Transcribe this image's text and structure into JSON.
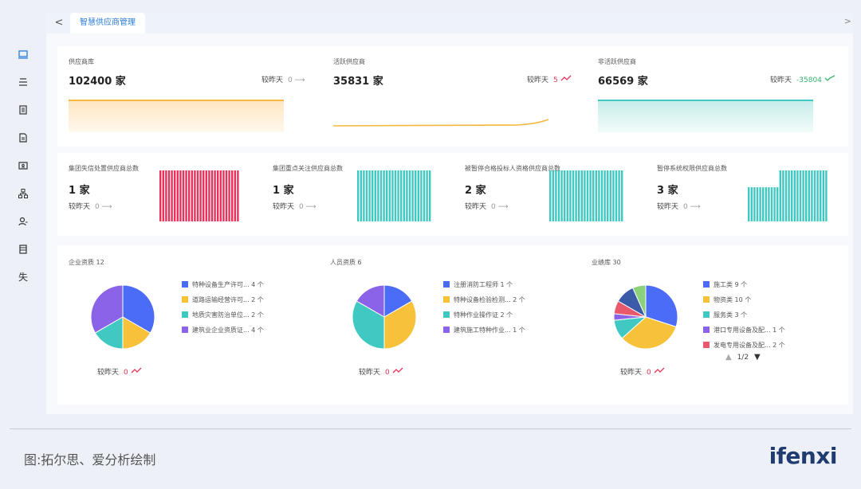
{
  "tabs": {
    "active": "智慧供应商管理",
    "back": "<",
    "forward": ">"
  },
  "sidebar": {
    "items": [
      "laptop-icon",
      "list-icon",
      "document-icon",
      "file-icon",
      "id-card-icon",
      "org-tree-icon",
      "user-icon",
      "report-icon"
    ],
    "last_text": "失"
  },
  "stats_top": [
    {
      "label": "供应商库",
      "value": "102400 家",
      "cmp_label": "较昨天",
      "cmp_value": "0",
      "trend": "flat"
    },
    {
      "label": "活跃供应商",
      "value": "35831 家",
      "cmp_label": "较昨天",
      "cmp_value": "5",
      "trend": "up"
    },
    {
      "label": "非活跃供应商",
      "value": "66569 家",
      "cmp_label": "较昨天",
      "cmp_value": "-35804",
      "trend": "down-check"
    }
  ],
  "stats_mid": [
    {
      "label": "集团失信处置供应商总数",
      "value": "1 家",
      "cmp_label": "较昨天",
      "cmp_value": "0",
      "color": "#e8315b"
    },
    {
      "label": "集团重点关注供应商总数",
      "value": "1 家",
      "cmp_label": "较昨天",
      "cmp_value": "0",
      "color": "#3fc9c2"
    },
    {
      "label": "被暂停合格投标人资格供应商总数",
      "value": "2 家",
      "cmp_label": "较昨天",
      "cmp_value": "0",
      "color": "#3fc9c2"
    },
    {
      "label": "暂停系统权限供应商总数",
      "value": "3 家",
      "cmp_label": "较昨天",
      "cmp_value": "0",
      "color": "#3fc9c2"
    }
  ],
  "pies": [
    {
      "title": "企业资质 12",
      "cmp_label": "较昨天",
      "cmp_value": "0",
      "legend": [
        {
          "label": "特种设备生产许可... 4 个",
          "value": 4,
          "color": "#4a6cf7"
        },
        {
          "label": "道路运输经营许可... 2 个",
          "value": 2,
          "color": "#f8c13a"
        },
        {
          "label": "地质灾害防治单位... 2 个",
          "value": 2,
          "color": "#3fc9c2"
        },
        {
          "label": "建筑业企业资质证... 4 个",
          "value": 4,
          "color": "#8a63e8"
        }
      ]
    },
    {
      "title": "人员资质 6",
      "cmp_label": "较昨天",
      "cmp_value": "0",
      "legend": [
        {
          "label": "注册消防工程师 1 个",
          "value": 1,
          "color": "#4a6cf7"
        },
        {
          "label": "特种设备检验检测... 2 个",
          "value": 2,
          "color": "#f8c13a"
        },
        {
          "label": "特种作业操作证 2 个",
          "value": 2,
          "color": "#3fc9c2"
        },
        {
          "label": "建筑施工特种作业... 1 个",
          "value": 1,
          "color": "#8a63e8"
        }
      ]
    },
    {
      "title": "业绩库 30",
      "cmp_label": "较昨天",
      "cmp_value": "0",
      "pager": "1/2",
      "legend": [
        {
          "label": "施工类 9 个",
          "value": 9,
          "color": "#4a6cf7"
        },
        {
          "label": "物资类 10 个",
          "value": 10,
          "color": "#f8c13a"
        },
        {
          "label": "服务类 3 个",
          "value": 3,
          "color": "#3fc9c2"
        },
        {
          "label": "港口专用设备及配... 1 个",
          "value": 1,
          "color": "#8a63e8"
        },
        {
          "label": "发电专用设备及配... 2 个",
          "value": 2,
          "color": "#e85a6b"
        }
      ],
      "hidden_slices": [
        {
          "value": 3,
          "color": "#3b5aa8"
        },
        {
          "value": 2,
          "color": "#8bd07a"
        }
      ]
    }
  ],
  "footer": {
    "caption": "图:拓尔思、爱分析绘制",
    "brand": "ifenxi"
  }
}
